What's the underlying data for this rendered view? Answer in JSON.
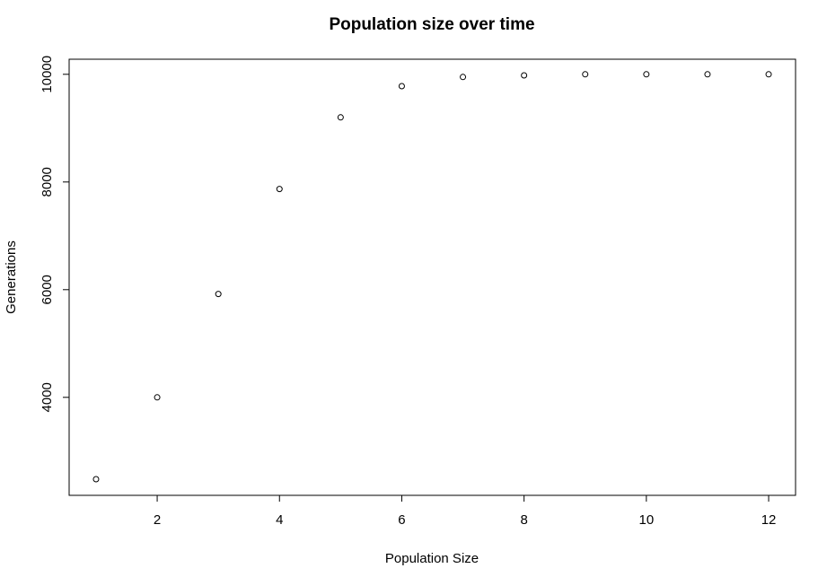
{
  "chart_data": {
    "type": "scatter",
    "title": "Population size over time",
    "xlabel": "Population Size",
    "ylabel": "Generations",
    "xlim": [
      0.56,
      12.44
    ],
    "ylim": [
      2180,
      10280
    ],
    "x_ticks": [
      2,
      4,
      6,
      8,
      10,
      12
    ],
    "y_ticks": [
      4000,
      6000,
      8000,
      10000
    ],
    "x_tick_labels": [
      "2",
      "4",
      "6",
      "8",
      "10",
      "12"
    ],
    "y_tick_labels": [
      "4000",
      "6000",
      "8000",
      "10000"
    ],
    "grid": false,
    "legend": "none",
    "series": [
      {
        "x": [
          1,
          2,
          3,
          4,
          5,
          6,
          7,
          8,
          9,
          10,
          11,
          12
        ],
        "y": [
          2480,
          4000,
          5920,
          7870,
          9200,
          9780,
          9950,
          9980,
          10000,
          10000,
          10000,
          10000
        ]
      }
    ]
  }
}
